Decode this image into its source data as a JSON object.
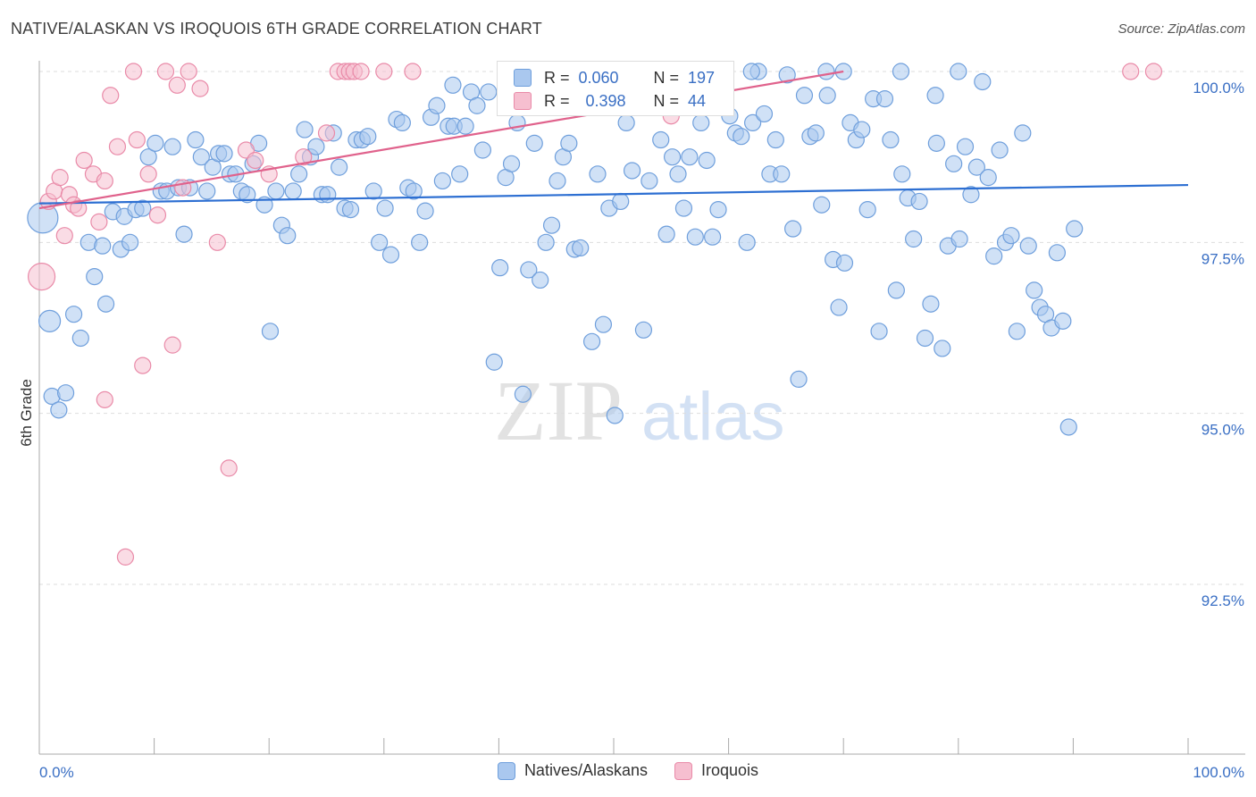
{
  "header": {
    "title": "NATIVE/ALASKAN VS IROQUOIS 6TH GRADE CORRELATION CHART",
    "source": "Source: ZipAtlas.com"
  },
  "watermark": {
    "zip": "ZIP",
    "atlas": "atlas"
  },
  "stats": {
    "r_label": "R =",
    "n_label": "N =",
    "series": [
      {
        "name": "Natives/Alaskans",
        "r": "0.060",
        "n": "197"
      },
      {
        "name": "Iroquois",
        "r": "0.398",
        "n": "44"
      }
    ]
  },
  "legend": {
    "items": [
      "Natives/Alaskans",
      "Iroquois"
    ]
  },
  "colors": {
    "blue_fill": "#aac8ef",
    "blue_stroke": "#6f9fdc",
    "blue_line": "#2d6fd2",
    "pink_fill": "#f6bfd0",
    "pink_stroke": "#e98aa8",
    "pink_line": "#e0628c",
    "tick_text": "#3a6fc4",
    "grid": "#dddddd"
  },
  "chart_data": {
    "type": "scatter",
    "title": "NATIVE/ALASKAN VS IROQUOIS 6TH GRADE CORRELATION CHART",
    "xlabel": "",
    "ylabel": "6th Grade",
    "xlim": [
      0,
      100
    ],
    "ylim": [
      90.2,
      100.5
    ],
    "x_tick_labels": [
      "0.0%",
      "100.0%"
    ],
    "y_ticks": [
      {
        "value": 100.0,
        "label": "100.0%"
      },
      {
        "value": 97.5,
        "label": "97.5%"
      },
      {
        "value": 95.0,
        "label": "95.0%"
      },
      {
        "value": 92.5,
        "label": "92.5%"
      }
    ],
    "grid": "horizontal dashed",
    "legend_position": "bottom-center",
    "series": [
      {
        "name": "Natives/Alaskans",
        "trend": {
          "x": [
            0,
            100
          ],
          "y": [
            98.07,
            98.34
          ]
        },
        "points": [
          [
            0.3,
            97.86
          ],
          [
            0.9,
            96.35
          ],
          [
            1.1,
            95.25
          ],
          [
            1.7,
            95.05
          ],
          [
            2.3,
            95.3
          ],
          [
            3.0,
            96.45
          ],
          [
            3.6,
            96.1
          ],
          [
            4.3,
            97.5
          ],
          [
            4.8,
            97.0
          ],
          [
            5.5,
            97.45
          ],
          [
            5.8,
            96.6
          ],
          [
            6.4,
            97.95
          ],
          [
            7.1,
            97.4
          ],
          [
            7.4,
            97.88
          ],
          [
            7.9,
            97.5
          ],
          [
            8.4,
            97.98
          ],
          [
            9.0,
            98.0
          ],
          [
            9.5,
            98.75
          ],
          [
            10.1,
            98.95
          ],
          [
            10.6,
            98.25
          ],
          [
            11.1,
            98.25
          ],
          [
            11.6,
            98.9
          ],
          [
            12.1,
            98.3
          ],
          [
            12.6,
            97.62
          ],
          [
            13.1,
            98.3
          ],
          [
            13.6,
            99.0
          ],
          [
            14.1,
            98.75
          ],
          [
            14.6,
            98.25
          ],
          [
            15.1,
            98.6
          ],
          [
            15.6,
            98.8
          ],
          [
            16.1,
            98.8
          ],
          [
            16.6,
            98.5
          ],
          [
            17.1,
            98.5
          ],
          [
            17.6,
            98.25
          ],
          [
            18.1,
            98.2
          ],
          [
            18.6,
            98.65
          ],
          [
            19.1,
            98.95
          ],
          [
            19.6,
            98.05
          ],
          [
            20.1,
            96.2
          ],
          [
            20.6,
            98.25
          ],
          [
            21.1,
            97.75
          ],
          [
            21.6,
            97.6
          ],
          [
            22.1,
            98.25
          ],
          [
            22.6,
            98.5
          ],
          [
            23.1,
            99.15
          ],
          [
            23.6,
            98.75
          ],
          [
            24.1,
            98.9
          ],
          [
            24.6,
            98.2
          ],
          [
            25.1,
            98.2
          ],
          [
            25.6,
            99.1
          ],
          [
            26.1,
            98.6
          ],
          [
            26.6,
            98.0
          ],
          [
            27.1,
            97.98
          ],
          [
            27.6,
            99.0
          ],
          [
            28.1,
            99.0
          ],
          [
            28.6,
            99.05
          ],
          [
            29.1,
            98.25
          ],
          [
            29.6,
            97.5
          ],
          [
            30.1,
            98.0
          ],
          [
            30.6,
            97.32
          ],
          [
            31.1,
            99.3
          ],
          [
            31.6,
            99.25
          ],
          [
            32.1,
            98.3
          ],
          [
            32.6,
            98.25
          ],
          [
            33.1,
            97.5
          ],
          [
            33.6,
            97.96
          ],
          [
            34.1,
            99.33
          ],
          [
            34.6,
            99.5
          ],
          [
            35.1,
            98.4
          ],
          [
            35.6,
            99.2
          ],
          [
            36.1,
            99.2
          ],
          [
            36.6,
            98.5
          ],
          [
            37.1,
            99.2
          ],
          [
            37.6,
            99.7
          ],
          [
            38.1,
            99.5
          ],
          [
            38.6,
            98.85
          ],
          [
            39.1,
            99.7
          ],
          [
            39.6,
            95.75
          ],
          [
            40.1,
            97.13
          ],
          [
            40.6,
            98.45
          ],
          [
            41.1,
            98.65
          ],
          [
            41.6,
            99.25
          ],
          [
            42.1,
            95.28
          ],
          [
            42.6,
            97.1
          ],
          [
            43.1,
            98.95
          ],
          [
            43.6,
            96.95
          ],
          [
            44.1,
            97.5
          ],
          [
            44.6,
            97.75
          ],
          [
            45.1,
            98.4
          ],
          [
            45.6,
            98.75
          ],
          [
            46.1,
            98.95
          ],
          [
            46.6,
            97.4
          ],
          [
            47.1,
            97.42
          ],
          [
            47.6,
            99.6
          ],
          [
            48.1,
            96.05
          ],
          [
            48.6,
            98.5
          ],
          [
            49.1,
            96.3
          ],
          [
            49.6,
            98.0
          ],
          [
            50.1,
            94.97
          ],
          [
            50.6,
            98.1
          ],
          [
            51.1,
            99.25
          ],
          [
            51.6,
            98.55
          ],
          [
            52.1,
            99.5
          ],
          [
            52.6,
            96.22
          ],
          [
            53.1,
            98.4
          ],
          [
            53.6,
            99.55
          ],
          [
            54.1,
            99.0
          ],
          [
            54.6,
            97.62
          ],
          [
            55.1,
            98.75
          ],
          [
            55.6,
            98.5
          ],
          [
            56.1,
            98.0
          ],
          [
            56.6,
            98.75
          ],
          [
            57.1,
            97.58
          ],
          [
            57.6,
            99.25
          ],
          [
            58.1,
            98.7
          ],
          [
            58.6,
            97.58
          ],
          [
            59.1,
            97.98
          ],
          [
            59.6,
            99.95
          ],
          [
            60.1,
            99.35
          ],
          [
            60.6,
            99.1
          ],
          [
            61.1,
            99.05
          ],
          [
            61.6,
            97.5
          ],
          [
            62.1,
            99.25
          ],
          [
            62.6,
            100.0
          ],
          [
            63.1,
            99.38
          ],
          [
            63.6,
            98.5
          ],
          [
            64.1,
            99.0
          ],
          [
            64.6,
            98.5
          ],
          [
            65.1,
            99.95
          ],
          [
            65.6,
            97.7
          ],
          [
            66.1,
            95.5
          ],
          [
            66.6,
            99.65
          ],
          [
            67.1,
            99.05
          ],
          [
            67.6,
            99.1
          ],
          [
            68.1,
            98.05
          ],
          [
            68.6,
            99.65
          ],
          [
            69.1,
            97.25
          ],
          [
            69.6,
            96.55
          ],
          [
            70.1,
            97.2
          ],
          [
            70.6,
            99.25
          ],
          [
            71.1,
            99.0
          ],
          [
            71.6,
            99.15
          ],
          [
            72.1,
            97.98
          ],
          [
            72.6,
            99.6
          ],
          [
            73.1,
            96.2
          ],
          [
            73.6,
            99.6
          ],
          [
            74.1,
            99.0
          ],
          [
            74.6,
            96.8
          ],
          [
            75.1,
            98.5
          ],
          [
            75.6,
            98.15
          ],
          [
            76.1,
            97.55
          ],
          [
            76.6,
            98.1
          ],
          [
            77.1,
            96.1
          ],
          [
            77.6,
            96.6
          ],
          [
            78.1,
            98.95
          ],
          [
            78.6,
            95.95
          ],
          [
            79.1,
            97.45
          ],
          [
            79.6,
            98.65
          ],
          [
            80.1,
            97.55
          ],
          [
            80.6,
            98.9
          ],
          [
            81.1,
            98.2
          ],
          [
            81.6,
            98.6
          ],
          [
            82.1,
            99.85
          ],
          [
            82.6,
            98.45
          ],
          [
            83.1,
            97.3
          ],
          [
            83.6,
            98.85
          ],
          [
            84.1,
            97.5
          ],
          [
            84.6,
            97.6
          ],
          [
            85.1,
            96.2
          ],
          [
            85.6,
            99.1
          ],
          [
            86.1,
            97.45
          ],
          [
            86.6,
            96.8
          ],
          [
            87.1,
            96.55
          ],
          [
            87.6,
            96.45
          ],
          [
            88.1,
            96.25
          ],
          [
            88.6,
            97.35
          ],
          [
            89.1,
            96.35
          ],
          [
            89.6,
            94.8
          ],
          [
            90.1,
            97.7
          ],
          [
            52.0,
            100.0
          ],
          [
            56.0,
            100.0
          ],
          [
            70.0,
            100.0
          ],
          [
            62.0,
            100.0
          ],
          [
            68.5,
            100.0
          ],
          [
            75.0,
            100.0
          ],
          [
            80.0,
            100.0
          ],
          [
            41.5,
            100.0
          ],
          [
            78.0,
            99.65
          ],
          [
            36.0,
            99.8
          ]
        ]
      },
      {
        "name": "Iroquois",
        "trend": {
          "x": [
            0,
            70
          ],
          "y": [
            98.0,
            100.0
          ]
        },
        "points": [
          [
            0.2,
            97.0
          ],
          [
            0.8,
            98.1
          ],
          [
            1.3,
            98.25
          ],
          [
            1.8,
            98.45
          ],
          [
            2.2,
            97.6
          ],
          [
            2.6,
            98.2
          ],
          [
            3.0,
            98.05
          ],
          [
            3.4,
            98.0
          ],
          [
            3.9,
            98.7
          ],
          [
            4.7,
            98.5
          ],
          [
            5.2,
            97.8
          ],
          [
            5.7,
            98.4
          ],
          [
            6.2,
            99.65
          ],
          [
            6.8,
            98.9
          ],
          [
            7.5,
            92.9
          ],
          [
            8.2,
            100.0
          ],
          [
            8.5,
            99.0
          ],
          [
            9.0,
            95.7
          ],
          [
            9.5,
            98.5
          ],
          [
            10.3,
            97.9
          ],
          [
            11.0,
            100.0
          ],
          [
            11.6,
            96.0
          ],
          [
            12.0,
            99.8
          ],
          [
            12.5,
            98.3
          ],
          [
            13.0,
            100.0
          ],
          [
            14.0,
            99.75
          ],
          [
            15.5,
            97.5
          ],
          [
            16.5,
            94.2
          ],
          [
            18.0,
            98.85
          ],
          [
            18.8,
            98.7
          ],
          [
            20.0,
            98.5
          ],
          [
            23.0,
            98.75
          ],
          [
            25.0,
            99.1
          ],
          [
            26.0,
            100.0
          ],
          [
            26.6,
            100.0
          ],
          [
            27.0,
            100.0
          ],
          [
            27.4,
            100.0
          ],
          [
            28.0,
            100.0
          ],
          [
            30.0,
            100.0
          ],
          [
            32.5,
            100.0
          ],
          [
            5.7,
            95.2
          ],
          [
            55.0,
            99.35
          ],
          [
            95.0,
            100.0
          ],
          [
            97.0,
            100.0
          ]
        ]
      }
    ]
  }
}
